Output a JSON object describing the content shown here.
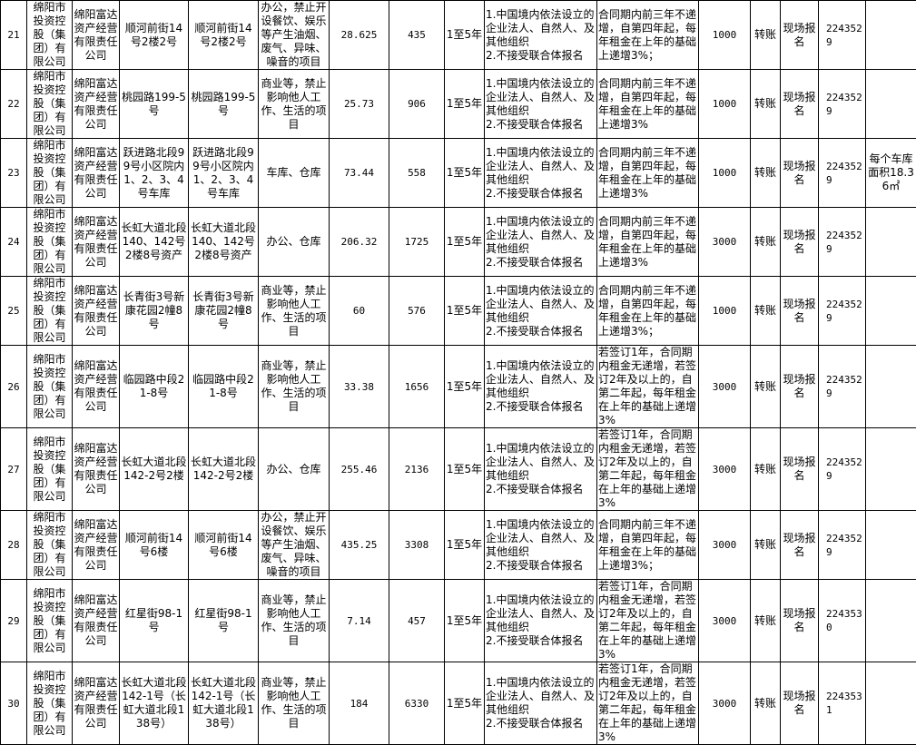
{
  "rows": [
    {
      "no": "21",
      "owner": "绵阳市投资控股（集团）有限公司",
      "company": "绵阳富达资产经营有限责任公司",
      "addr1": "顺河前街14号2楼2号",
      "addr2": "顺河前街14号2楼2号",
      "use": "办公，禁止开设餐饮、娱乐等产生油烟、废气、异味、噪音的项目",
      "area": "28.625",
      "rent": "435",
      "term": "1至5年",
      "req": "1.中国境内依法设立的企业法人、自然人、及其他组织\n2.不接受联合体报名",
      "increase": "合同期内前三年不递增，自第四年起，每年租金在上年的基础上递增3%；",
      "deposit": "1000",
      "pay": "转账",
      "method": "现场报名",
      "phone": "2243529",
      "note": ""
    },
    {
      "no": "22",
      "owner": "绵阳市投资控股（集团）有限公司",
      "company": "绵阳富达资产经营有限责任公司",
      "addr1": "桃园路199-5号",
      "addr2": "桃园路199-5号",
      "use": "商业等，禁止影响他人工作、生活的项目",
      "area": "25.73",
      "rent": "906",
      "term": "1至5年",
      "req": "1.中国境内依法设立的企业法人、自然人、及其他组织\n2.不接受联合体报名",
      "increase": "合同期内前三年不递增，自第四年起，每年租金在上年的基础上递增3%",
      "deposit": "1000",
      "pay": "转账",
      "method": "现场报名",
      "phone": "2243529",
      "note": ""
    },
    {
      "no": "23",
      "owner": "绵阳市投资控股（集团）有限公司",
      "company": "绵阳富达资产经营有限责任公司",
      "addr1": "跃进路北段99号小区院内1、2、3、4号车库",
      "addr2": "跃进路北段99号小区院内1、2、3、4号车库",
      "use": "车库、仓库",
      "area": "73.44",
      "rent": "558",
      "term": "1至5年",
      "req": "1.中国境内依法设立的企业法人、自然人、及其他组织\n2.不接受联合体报名",
      "increase": "合同期内前三年不递增，自第四年起，每年租金在上年的基础上递增3%",
      "deposit": "1000",
      "pay": "转账",
      "method": "现场报名",
      "phone": "2243529",
      "note": "每个车库面积18.36㎡"
    },
    {
      "no": "24",
      "owner": "绵阳市投资控股（集团）有限公司",
      "company": "绵阳富达资产经营有限责任公司",
      "addr1": "长虹大道北段140、142号2楼8号资产",
      "addr2": "长虹大道北段140、142号2楼8号资产",
      "use": "办公、仓库",
      "area": "206.32",
      "rent": "1725",
      "term": "1至5年",
      "req": "1.中国境内依法设立的企业法人、自然人、及其他组织\n2.不接受联合体报名",
      "increase": "合同期内前三年不递增，自第四年起，每年租金在上年的基础上递增3%",
      "deposit": "3000",
      "pay": "转账",
      "method": "现场报名",
      "phone": "2243529",
      "note": ""
    },
    {
      "no": "25",
      "owner": "绵阳市投资控股（集团）有限公司",
      "company": "绵阳富达资产经营有限责任公司",
      "addr1": "长青街3号新康花园2幢8号",
      "addr2": "长青街3号新康花园2幢8号",
      "use": "商业等，禁止影响他人工作、生活的项目",
      "area": "60",
      "rent": "576",
      "term": "1至5年",
      "req": "1.中国境内依法设立的企业法人、自然人、及其他组织\n2.不接受联合体报名",
      "increase": "合同期内前三年不递增，自第四年起，每年租金在上年的基础上递增3%；",
      "deposit": "1000",
      "pay": "转账",
      "method": "现场报名",
      "phone": "2243529",
      "note": ""
    },
    {
      "no": "26",
      "owner": "绵阳市投资控股（集团）有限公司",
      "company": "绵阳富达资产经营有限责任公司",
      "addr1": "临园路中段21-8号",
      "addr2": "临园路中段21-8号",
      "use": "商业等，禁止影响他人工作、生活的项目",
      "area": "33.38",
      "rent": "1656",
      "term": "1至5年",
      "req": "1.中国境内依法设立的企业法人、自然人、及其他组织\n2.不接受联合体报名",
      "increase": "若签订1年，合同期内租金无递增，若签订2年及以上的，自第二年起，每年租金在上年的基础上递增3%",
      "deposit": "3000",
      "pay": "转账",
      "method": "现场报名",
      "phone": "2243529",
      "note": ""
    },
    {
      "no": "27",
      "owner": "绵阳市投资控股（集团）有限公司",
      "company": "绵阳富达资产经营有限责任公司",
      "addr1": "长虹大道北段142-2号2楼",
      "addr2": "长虹大道北段142-2号2楼",
      "use": "办公、仓库",
      "area": "255.46",
      "rent": "2136",
      "term": "1至5年",
      "req": "1.中国境内依法设立的企业法人、自然人、及其他组织\n2.不接受联合体报名",
      "increase": "若签订1年，合同期内租金无递增，若签订2年及以上的，自第二年起，每年租金在上年的基础上递增3%",
      "deposit": "3000",
      "pay": "转账",
      "method": "现场报名",
      "phone": "2243529",
      "note": ""
    },
    {
      "no": "28",
      "owner": "绵阳市投资控股（集团）有限公司",
      "company": "绵阳富达资产经营有限责任公司",
      "addr1": "顺河前街14号6楼",
      "addr2": "顺河前街14号6楼",
      "use": "办公，禁止开设餐饮、娱乐等产生油烟、废气、异味、噪音的项目",
      "area": "435.25",
      "rent": "3308",
      "term": "1至5年",
      "req": "1.中国境内依法设立的企业法人、自然人、及其他组织\n2.不接受联合体报名",
      "increase": "合同期内前三年不递增，自第四年起，每年租金在上年的基础上递增3%；",
      "deposit": "3000",
      "pay": "转账",
      "method": "现场报名",
      "phone": "2243529",
      "note": ""
    },
    {
      "no": "29",
      "owner": "绵阳市投资控股（集团）有限公司",
      "company": "绵阳富达资产经营有限责任公司",
      "addr1": "红星街98-1号",
      "addr2": "红星街98-1号",
      "use": "商业等，禁止影响他人工作、生活的项目",
      "area": "7.14",
      "rent": "457",
      "term": "1至5年",
      "req": "1.中国境内依法设立的企业法人、自然人、及其他组织\n2.不接受联合体报名",
      "increase": "若签订1年，合同期内租金无递增，若签订2年及以上的，自第二年起，每年租金在上年的基础上递增3%",
      "deposit": "3000",
      "pay": "转账",
      "method": "现场报名",
      "phone": "2243530",
      "note": ""
    },
    {
      "no": "30",
      "owner": "绵阳市投资控股（集团）有限公司",
      "company": "绵阳富达资产经营有限责任公司",
      "addr1": "长虹大道北段142-1号（长虹大道北段138号）",
      "addr2": "长虹大道北段142-1号（长虹大道北段138号）",
      "use": "商业等，禁止影响他人工作、生活的项目",
      "area": "184",
      "rent": "6330",
      "term": "1至5年",
      "req": "1.中国境内依法设立的企业法人、自然人、及其他组织\n2.不接受联合体报名",
      "increase": "若签订1年，合同期内租金无递增，若签订2年及以上的，自第二年起，每年租金在上年的基础上递增3%",
      "deposit": "3000",
      "pay": "转账",
      "method": "现场报名",
      "phone": "2243531",
      "note": ""
    }
  ]
}
